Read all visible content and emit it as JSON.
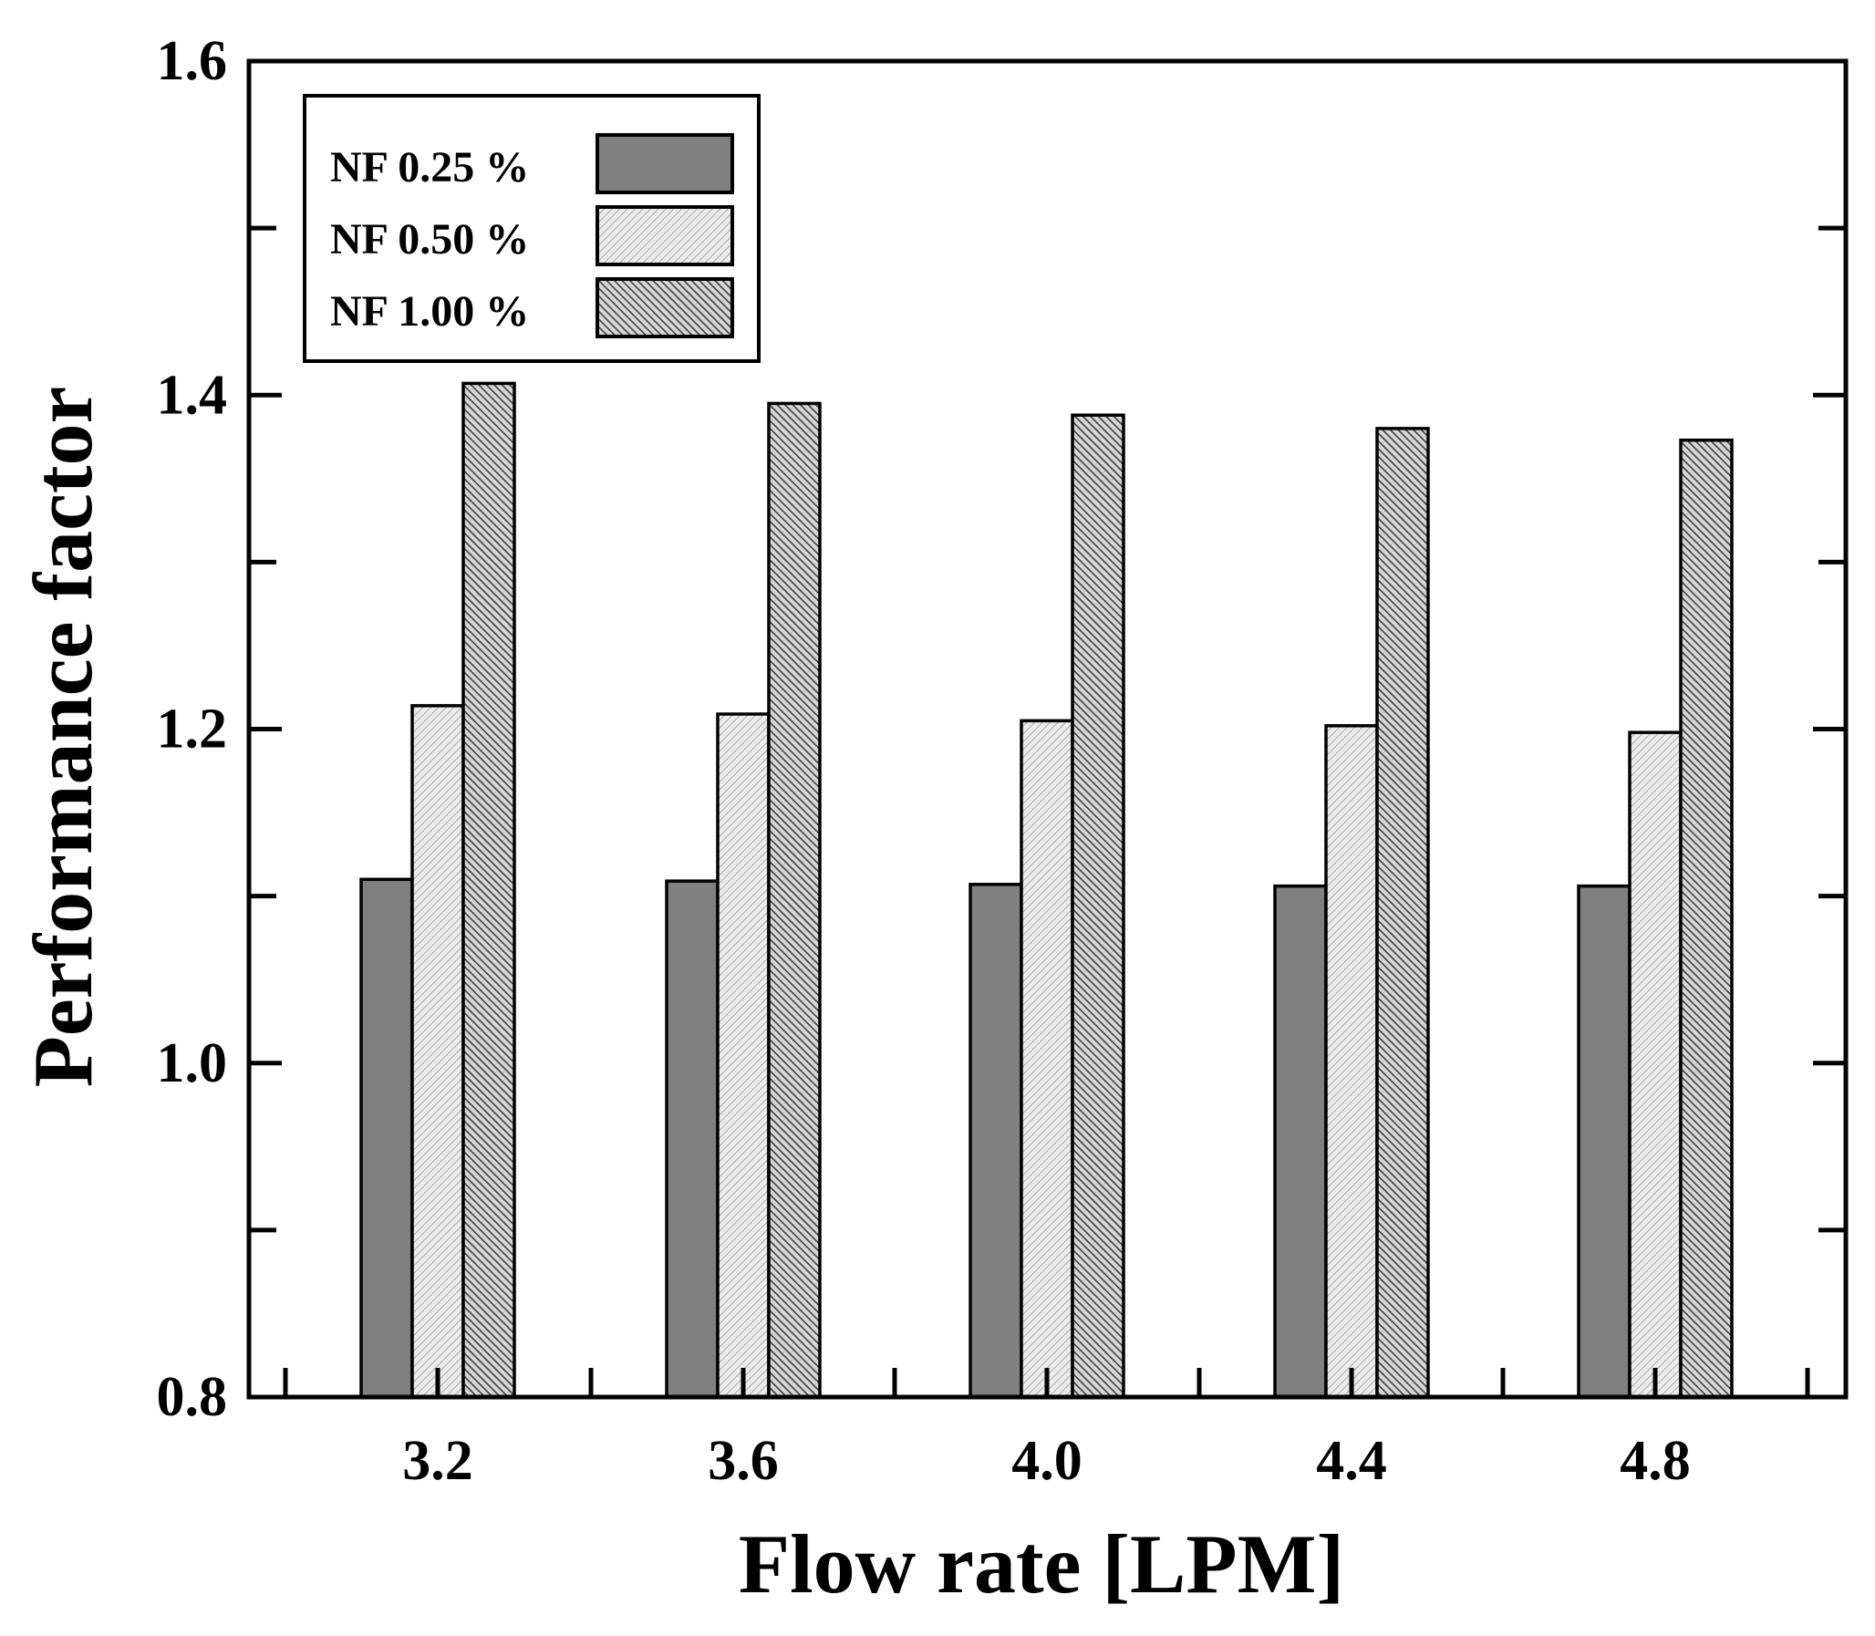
{
  "chart_data": {
    "type": "bar",
    "title": "",
    "xlabel": "Flow rate [LPM]",
    "ylabel": "Performance factor",
    "categories": [
      "3.2",
      "3.6",
      "4.0",
      "4.4",
      "4.8"
    ],
    "series": [
      {
        "name": "NF 0.25 %",
        "values": [
          1.11,
          1.109,
          1.107,
          1.106,
          1.106
        ],
        "fill": "#808080",
        "pattern": "solid"
      },
      {
        "name": "NF 0.50 %",
        "values": [
          1.214,
          1.209,
          1.205,
          1.202,
          1.198
        ],
        "fill": "#e6e6e6",
        "pattern": "light-hatch"
      },
      {
        "name": "NF 1.00 %",
        "values": [
          1.407,
          1.395,
          1.388,
          1.38,
          1.373
        ],
        "fill": "#9a9a9a",
        "pattern": "dense-hatch"
      }
    ],
    "ylim": [
      0.8,
      1.6
    ],
    "y_ticks": [
      "0.8",
      "1.0",
      "1.2",
      "1.4",
      "1.6"
    ],
    "y_minor_ticks": [
      0.9,
      1.1,
      1.3,
      1.5
    ],
    "grid": false,
    "legend_position": "top-left",
    "colors": {
      "axis": "#000000",
      "background": "#ffffff"
    }
  }
}
